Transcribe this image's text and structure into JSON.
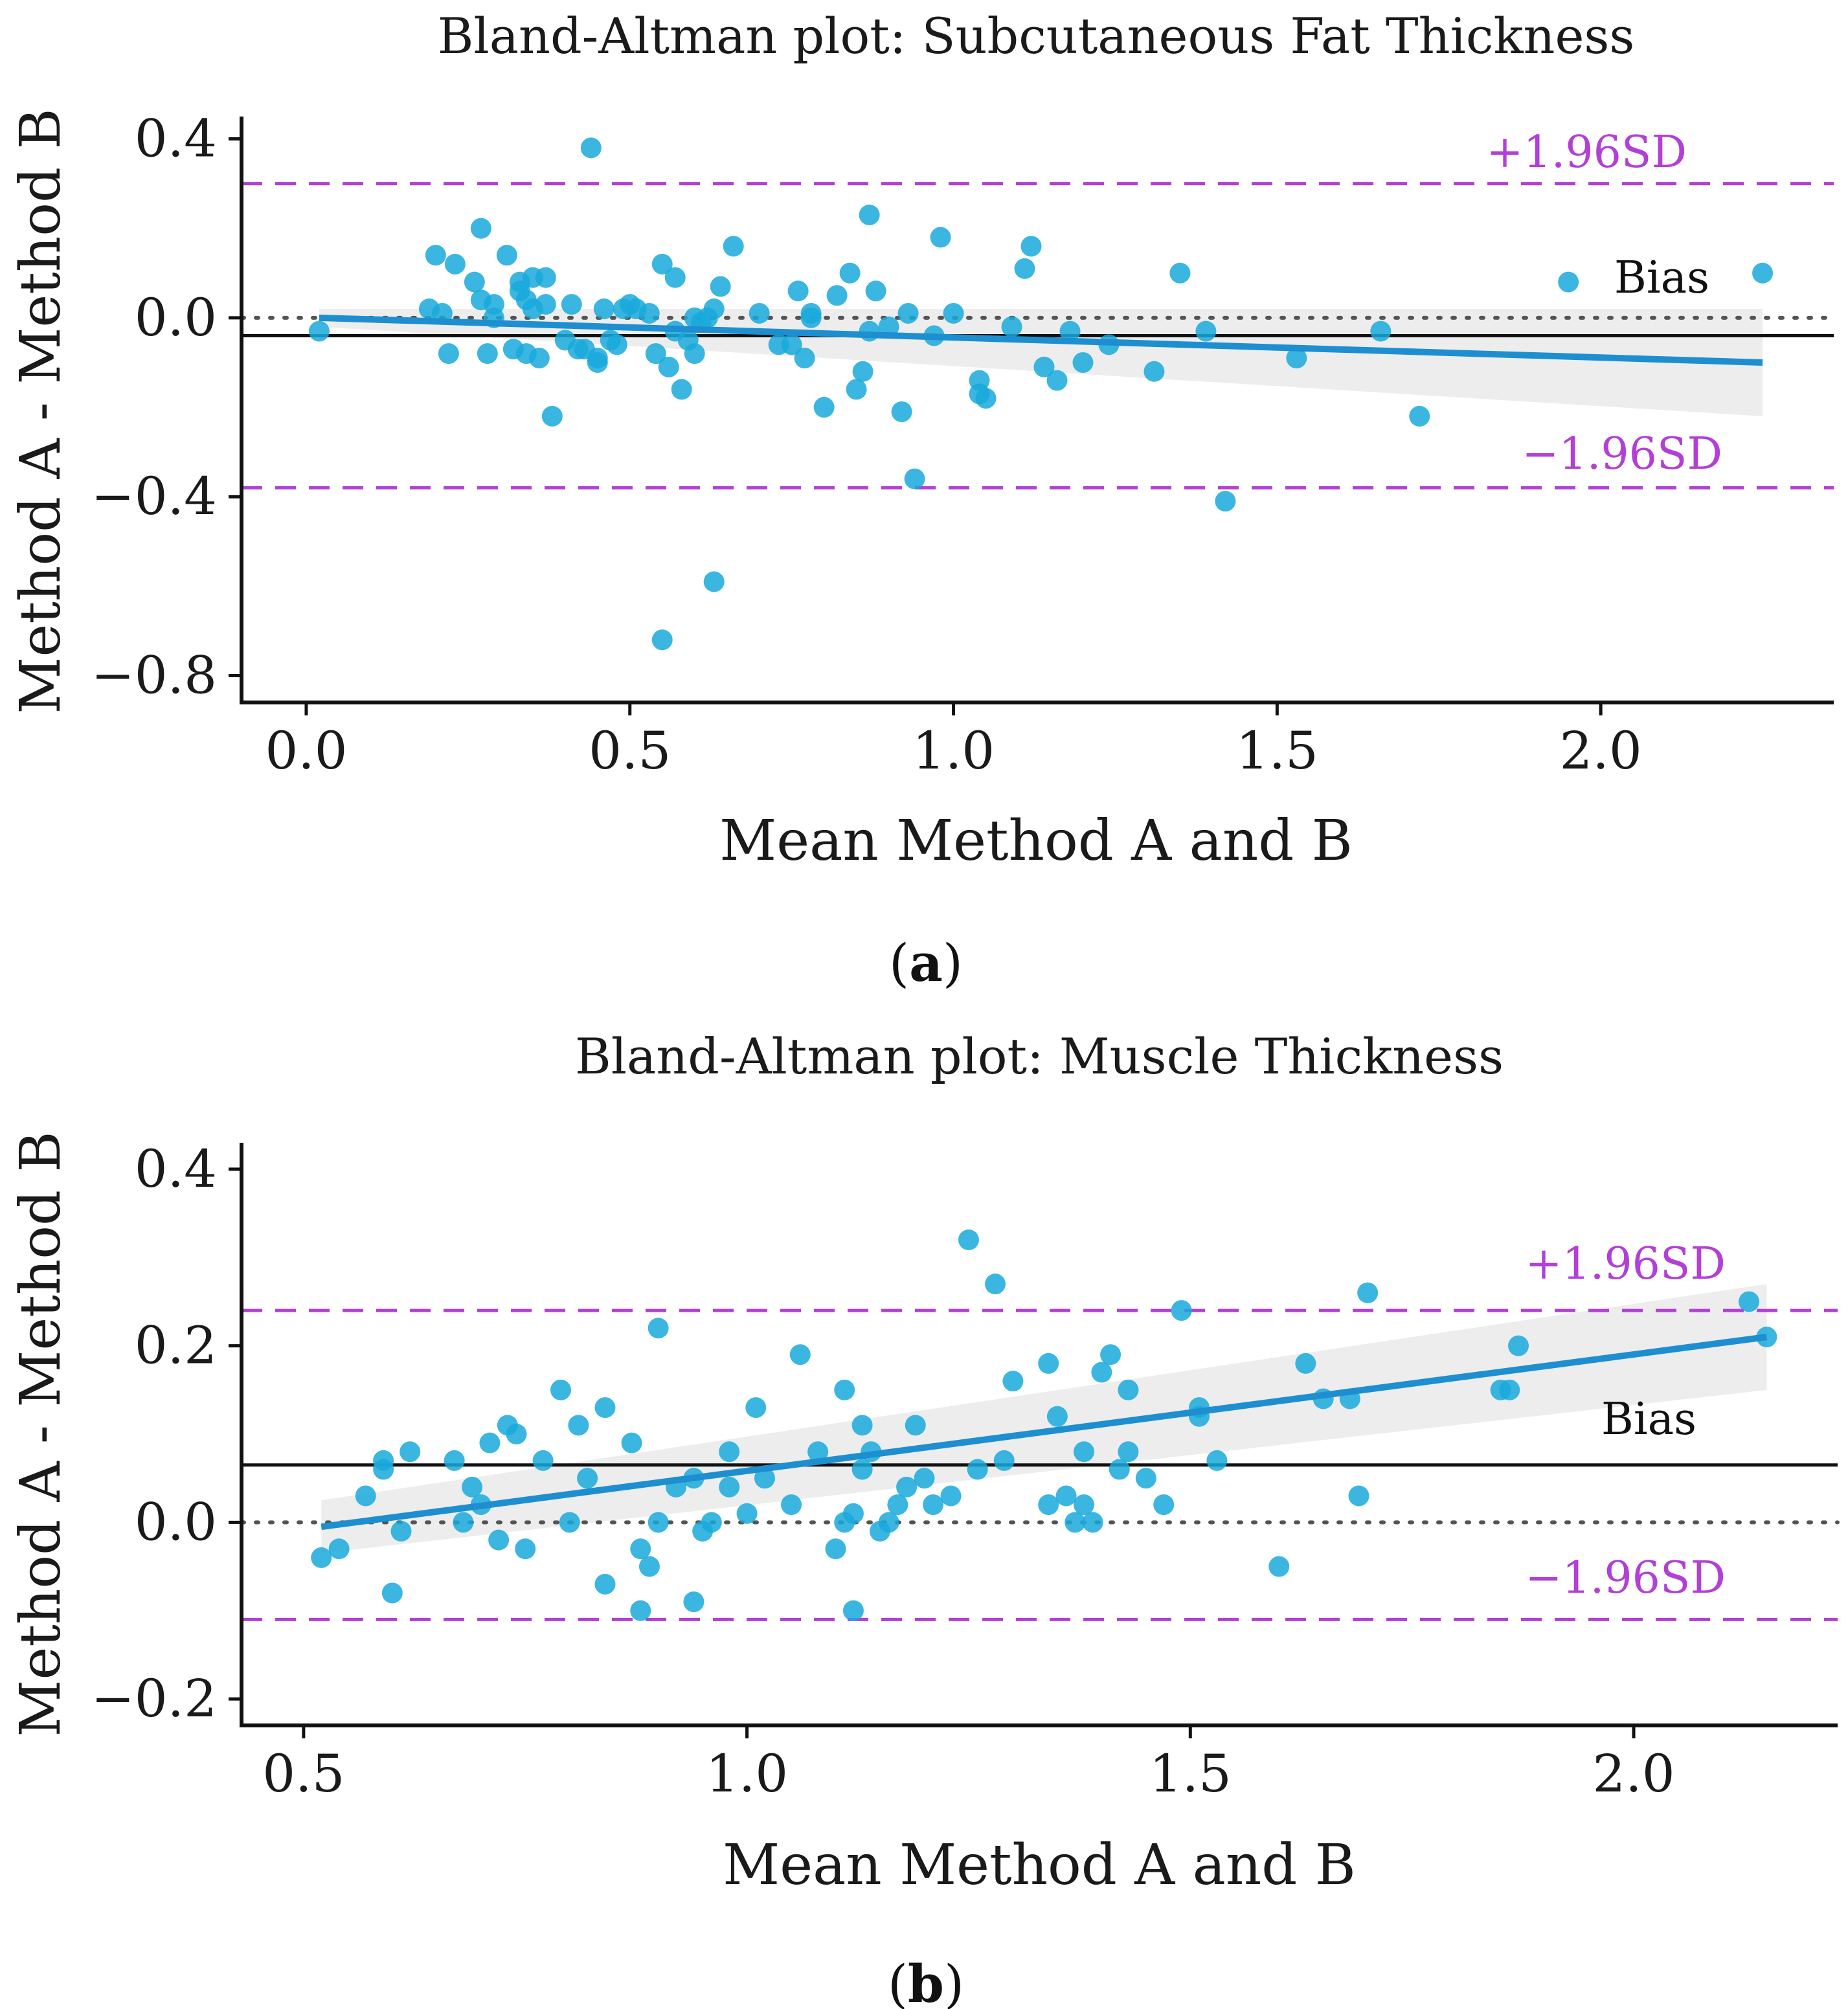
{
  "colors": {
    "points": "#19a9dc",
    "fit_line": "#1d8fd0",
    "ci_band": "#e9e9e9",
    "limits": "#b23fd6",
    "bias": "#111111",
    "zero": "#555555",
    "axis": "#111111"
  },
  "chart_data": [
    {
      "type": "scatter",
      "panel": "a",
      "caption_letter": "a",
      "title": "Bland-Altman plot: Subcutaneous Fat Thickness",
      "xlabel": "Mean Method A and B",
      "ylabel": "Method A - Method B",
      "xlim": [
        -0.1,
        2.36
      ],
      "ylim": [
        -0.86,
        0.45
      ],
      "xticks": [
        0.0,
        0.5,
        1.0,
        1.5,
        2.0
      ],
      "xtick_labels": [
        "0.0",
        "0.5",
        "1.0",
        "1.5",
        "2.0"
      ],
      "yticks": [
        0.4,
        0.0,
        -0.4,
        -0.8
      ],
      "ytick_labels": [
        "0.4",
        "0.0",
        "−0.4",
        "−0.8"
      ],
      "bias": -0.04,
      "upper_limit": 0.3,
      "lower_limit": -0.38,
      "upper_label": "+1.96SD",
      "lower_label": "−1.96SD",
      "bias_label": "Bias",
      "fit": {
        "x": [
          0.02,
          2.25
        ],
        "y": [
          0.0,
          -0.1
        ],
        "ci_halfwidth": [
          0.02,
          0.12
        ]
      },
      "points": [
        [
          0.02,
          -0.03
        ],
        [
          0.19,
          0.02
        ],
        [
          0.2,
          0.14
        ],
        [
          0.21,
          0.01
        ],
        [
          0.22,
          -0.08
        ],
        [
          0.23,
          0.12
        ],
        [
          0.26,
          0.08
        ],
        [
          0.27,
          0.04
        ],
        [
          0.27,
          0.2
        ],
        [
          0.28,
          -0.08
        ],
        [
          0.29,
          0.03
        ],
        [
          0.29,
          0.0
        ],
        [
          0.31,
          0.14
        ],
        [
          0.32,
          -0.07
        ],
        [
          0.33,
          0.06
        ],
        [
          0.33,
          0.08
        ],
        [
          0.34,
          0.04
        ],
        [
          0.34,
          -0.08
        ],
        [
          0.35,
          0.02
        ],
        [
          0.35,
          0.09
        ],
        [
          0.36,
          -0.09
        ],
        [
          0.37,
          0.09
        ],
        [
          0.37,
          0.03
        ],
        [
          0.38,
          -0.22
        ],
        [
          0.4,
          -0.05
        ],
        [
          0.41,
          0.03
        ],
        [
          0.42,
          -0.07
        ],
        [
          0.43,
          -0.07
        ],
        [
          0.44,
          0.38
        ],
        [
          0.45,
          -0.1
        ],
        [
          0.45,
          -0.09
        ],
        [
          0.46,
          0.02
        ],
        [
          0.47,
          -0.05
        ],
        [
          0.48,
          -0.06
        ],
        [
          0.49,
          0.02
        ],
        [
          0.5,
          0.03
        ],
        [
          0.51,
          0.02
        ],
        [
          0.53,
          0.01
        ],
        [
          0.54,
          -0.08
        ],
        [
          0.55,
          0.12
        ],
        [
          0.55,
          -0.72
        ],
        [
          0.56,
          -0.11
        ],
        [
          0.57,
          0.09
        ],
        [
          0.57,
          -0.03
        ],
        [
          0.58,
          -0.16
        ],
        [
          0.59,
          -0.05
        ],
        [
          0.6,
          -0.08
        ],
        [
          0.6,
          0.0
        ],
        [
          0.61,
          -0.01
        ],
        [
          0.62,
          0.0
        ],
        [
          0.63,
          -0.59
        ],
        [
          0.63,
          0.02
        ],
        [
          0.64,
          0.07
        ],
        [
          0.66,
          0.16
        ],
        [
          0.7,
          0.01
        ],
        [
          0.73,
          -0.06
        ],
        [
          0.75,
          -0.06
        ],
        [
          0.76,
          0.06
        ],
        [
          0.77,
          -0.09
        ],
        [
          0.78,
          0.0
        ],
        [
          0.78,
          0.01
        ],
        [
          0.8,
          -0.2
        ],
        [
          0.82,
          0.05
        ],
        [
          0.84,
          0.1
        ],
        [
          0.85,
          -0.16
        ],
        [
          0.86,
          -0.12
        ],
        [
          0.87,
          -0.03
        ],
        [
          0.87,
          0.23
        ],
        [
          0.88,
          0.06
        ],
        [
          0.9,
          -0.02
        ],
        [
          0.92,
          -0.21
        ],
        [
          0.93,
          0.01
        ],
        [
          0.94,
          -0.36
        ],
        [
          0.97,
          -0.04
        ],
        [
          0.98,
          0.18
        ],
        [
          1.0,
          0.01
        ],
        [
          1.04,
          -0.14
        ],
        [
          1.04,
          -0.17
        ],
        [
          1.05,
          -0.18
        ],
        [
          1.09,
          -0.02
        ],
        [
          1.11,
          0.11
        ],
        [
          1.12,
          0.16
        ],
        [
          1.14,
          -0.11
        ],
        [
          1.16,
          -0.14
        ],
        [
          1.18,
          -0.03
        ],
        [
          1.2,
          -0.1
        ],
        [
          1.24,
          -0.06
        ],
        [
          1.31,
          -0.12
        ],
        [
          1.35,
          0.1
        ],
        [
          1.39,
          -0.03
        ],
        [
          1.42,
          -0.41
        ],
        [
          1.53,
          -0.09
        ],
        [
          1.66,
          -0.03
        ],
        [
          1.72,
          -0.22
        ],
        [
          1.95,
          0.08
        ],
        [
          2.25,
          0.1
        ]
      ]
    },
    {
      "type": "scatter",
      "panel": "b",
      "caption_letter": "b",
      "title": "Bland-Altman plot: Muscle Thickness",
      "xlabel": "Mean Method A and B",
      "ylabel": "Method A - Method B",
      "xlim": [
        0.43,
        2.23
      ],
      "ylim": [
        -0.23,
        0.43
      ],
      "xticks": [
        0.5,
        1.0,
        1.5,
        2.0
      ],
      "xtick_labels": [
        "0.5",
        "1.0",
        "1.5",
        "2.0"
      ],
      "yticks": [
        0.4,
        0.2,
        0.0,
        -0.2
      ],
      "ytick_labels": [
        "0.4",
        "0.2",
        "0.0",
        "−0.2"
      ],
      "bias": 0.065,
      "upper_limit": 0.24,
      "lower_limit": -0.11,
      "upper_label": "+1.96SD",
      "lower_label": "−1.96SD",
      "bias_label": "Bias",
      "fit": {
        "x": [
          0.52,
          2.15
        ],
        "y": [
          -0.005,
          0.21
        ],
        "ci_halfwidth": [
          0.03,
          0.06
        ]
      },
      "points": [
        [
          0.52,
          -0.04
        ],
        [
          0.54,
          -0.03
        ],
        [
          0.57,
          0.03
        ],
        [
          0.59,
          0.06
        ],
        [
          0.59,
          0.07
        ],
        [
          0.6,
          -0.08
        ],
        [
          0.61,
          -0.01
        ],
        [
          0.62,
          0.08
        ],
        [
          0.67,
          0.07
        ],
        [
          0.68,
          0.0
        ],
        [
          0.69,
          0.04
        ],
        [
          0.7,
          0.02
        ],
        [
          0.71,
          0.09
        ],
        [
          0.72,
          -0.02
        ],
        [
          0.73,
          0.11
        ],
        [
          0.74,
          0.1
        ],
        [
          0.75,
          -0.03
        ],
        [
          0.77,
          0.07
        ],
        [
          0.79,
          0.15
        ],
        [
          0.8,
          0.0
        ],
        [
          0.81,
          0.11
        ],
        [
          0.82,
          0.05
        ],
        [
          0.84,
          -0.07
        ],
        [
          0.84,
          0.13
        ],
        [
          0.87,
          0.09
        ],
        [
          0.88,
          -0.03
        ],
        [
          0.88,
          -0.1
        ],
        [
          0.89,
          -0.05
        ],
        [
          0.9,
          0.0
        ],
        [
          0.9,
          0.22
        ],
        [
          0.92,
          0.04
        ],
        [
          0.94,
          0.05
        ],
        [
          0.94,
          -0.09
        ],
        [
          0.95,
          -0.01
        ],
        [
          0.96,
          0.0
        ],
        [
          0.98,
          0.08
        ],
        [
          0.98,
          0.04
        ],
        [
          1.0,
          0.01
        ],
        [
          1.01,
          0.13
        ],
        [
          1.02,
          0.05
        ],
        [
          1.05,
          0.02
        ],
        [
          1.06,
          0.19
        ],
        [
          1.08,
          0.08
        ],
        [
          1.1,
          -0.03
        ],
        [
          1.11,
          0.0
        ],
        [
          1.11,
          0.15
        ],
        [
          1.12,
          0.01
        ],
        [
          1.12,
          -0.1
        ],
        [
          1.13,
          0.06
        ],
        [
          1.13,
          0.11
        ],
        [
          1.14,
          0.08
        ],
        [
          1.15,
          -0.01
        ],
        [
          1.16,
          0.0
        ],
        [
          1.17,
          0.02
        ],
        [
          1.18,
          0.04
        ],
        [
          1.19,
          0.11
        ],
        [
          1.2,
          0.05
        ],
        [
          1.21,
          0.02
        ],
        [
          1.23,
          0.03
        ],
        [
          1.25,
          0.32
        ],
        [
          1.26,
          0.06
        ],
        [
          1.28,
          0.27
        ],
        [
          1.29,
          0.07
        ],
        [
          1.3,
          0.16
        ],
        [
          1.34,
          0.02
        ],
        [
          1.34,
          0.18
        ],
        [
          1.35,
          0.12
        ],
        [
          1.36,
          0.03
        ],
        [
          1.37,
          0.0
        ],
        [
          1.38,
          0.02
        ],
        [
          1.38,
          0.08
        ],
        [
          1.39,
          0.0
        ],
        [
          1.4,
          0.17
        ],
        [
          1.41,
          0.19
        ],
        [
          1.42,
          0.06
        ],
        [
          1.43,
          0.15
        ],
        [
          1.43,
          0.08
        ],
        [
          1.45,
          0.05
        ],
        [
          1.47,
          0.02
        ],
        [
          1.49,
          0.24
        ],
        [
          1.51,
          0.13
        ],
        [
          1.51,
          0.12
        ],
        [
          1.53,
          0.07
        ],
        [
          1.6,
          -0.05
        ],
        [
          1.63,
          0.18
        ],
        [
          1.65,
          0.14
        ],
        [
          1.68,
          0.14
        ],
        [
          1.69,
          0.03
        ],
        [
          1.7,
          0.26
        ],
        [
          1.85,
          0.15
        ],
        [
          1.86,
          0.15
        ],
        [
          1.87,
          0.2
        ],
        [
          2.13,
          0.25
        ],
        [
          2.15,
          0.21
        ]
      ]
    }
  ]
}
